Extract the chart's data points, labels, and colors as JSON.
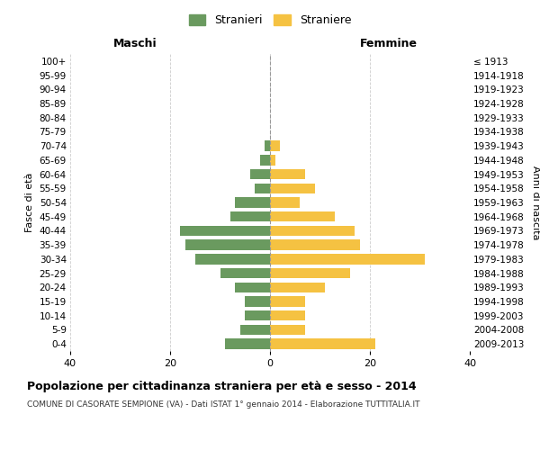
{
  "age_groups": [
    "0-4",
    "5-9",
    "10-14",
    "15-19",
    "20-24",
    "25-29",
    "30-34",
    "35-39",
    "40-44",
    "45-49",
    "50-54",
    "55-59",
    "60-64",
    "65-69",
    "70-74",
    "75-79",
    "80-84",
    "85-89",
    "90-94",
    "95-99",
    "100+"
  ],
  "birth_years": [
    "2009-2013",
    "2004-2008",
    "1999-2003",
    "1994-1998",
    "1989-1993",
    "1984-1988",
    "1979-1983",
    "1974-1978",
    "1969-1973",
    "1964-1968",
    "1959-1963",
    "1954-1958",
    "1949-1953",
    "1944-1948",
    "1939-1943",
    "1934-1938",
    "1929-1933",
    "1924-1928",
    "1919-1923",
    "1914-1918",
    "≤ 1913"
  ],
  "males": [
    9,
    6,
    5,
    5,
    7,
    10,
    15,
    17,
    18,
    8,
    7,
    3,
    4,
    2,
    1,
    0,
    0,
    0,
    0,
    0,
    0
  ],
  "females": [
    21,
    7,
    7,
    7,
    11,
    16,
    31,
    18,
    17,
    13,
    6,
    9,
    7,
    1,
    2,
    0,
    0,
    0,
    0,
    0,
    0
  ],
  "male_color": "#6a9a5f",
  "female_color": "#f5c242",
  "title": "Popolazione per cittadinanza straniera per età e sesso - 2014",
  "subtitle": "COMUNE DI CASORATE SEMPIONE (VA) - Dati ISTAT 1° gennaio 2014 - Elaborazione TUTTITALIA.IT",
  "xlabel_left": "Maschi",
  "xlabel_right": "Femmine",
  "ylabel_left": "Fasce di età",
  "ylabel_right": "Anni di nascita",
  "legend_male": "Stranieri",
  "legend_female": "Straniere",
  "xlim": 40,
  "background_color": "#ffffff",
  "grid_color": "#cccccc"
}
